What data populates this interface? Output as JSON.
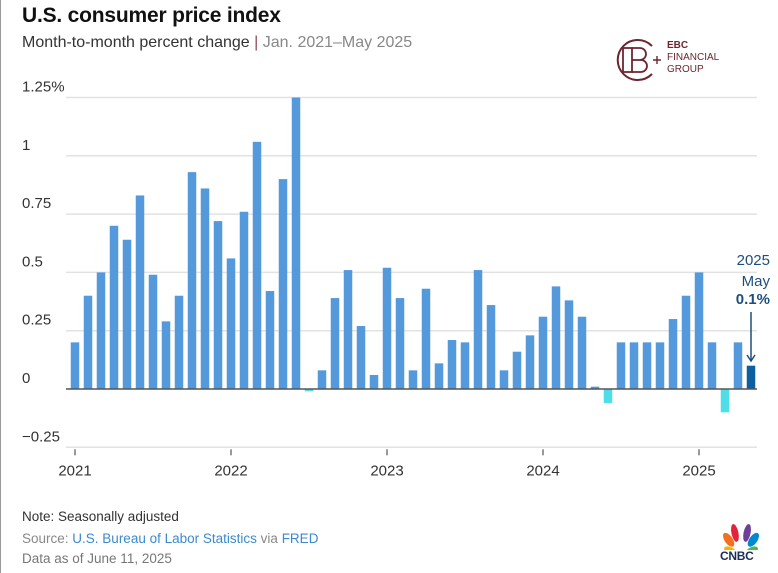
{
  "header": {
    "title": "U.S. consumer price index",
    "subtitle_main": "Month-to-month percent change",
    "subtitle_sep": "|",
    "subtitle_range": "Jan. 2021–May 2025"
  },
  "watermark": {
    "line1": "EBC",
    "line2": "FINANCIAL",
    "line3": "GROUP",
    "color": "#6b2632"
  },
  "annotation": {
    "year": "2025",
    "month": "May",
    "value": "0.1%",
    "color": "#1d4f7e"
  },
  "footer": {
    "note": "Note: Seasonally adjusted",
    "source_prefix": "Source:",
    "source_link": "U.S. Bureau of Labor Statistics",
    "source_via": "via",
    "source_link2": "FRED",
    "as_of": "Data as of June 11, 2025",
    "brand": "CNBC"
  },
  "colors": {
    "positive": "#5599dd",
    "negative": "#4fdde8",
    "highlight": "#0d5fa0",
    "grid": "#e2e2e2",
    "axis": "#555555"
  },
  "chart_data": {
    "type": "bar",
    "title": "U.S. consumer price index",
    "subtitle": "Month-to-month percent change | Jan. 2021–May 2025",
    "xlabel": "",
    "ylabel": "",
    "ylim": [
      -0.25,
      1.25
    ],
    "yticks": [
      -0.25,
      0,
      0.25,
      0.5,
      0.75,
      1,
      1.25
    ],
    "ytick_labels": [
      "−0.25",
      "0",
      "0.25",
      "0.5",
      "0.75",
      "1",
      "1.25%"
    ],
    "xticks": [
      "2021",
      "2022",
      "2023",
      "2024",
      "2025"
    ],
    "grid": true,
    "start": "2021-01",
    "categories": [
      "Jan 2021",
      "Feb 2021",
      "Mar 2021",
      "Apr 2021",
      "May 2021",
      "Jun 2021",
      "Jul 2021",
      "Aug 2021",
      "Sep 2021",
      "Oct 2021",
      "Nov 2021",
      "Dec 2021",
      "Jan 2022",
      "Feb 2022",
      "Mar 2022",
      "Apr 2022",
      "May 2022",
      "Jun 2022",
      "Jul 2022",
      "Aug 2022",
      "Sep 2022",
      "Oct 2022",
      "Nov 2022",
      "Dec 2022",
      "Jan 2023",
      "Feb 2023",
      "Mar 2023",
      "Apr 2023",
      "May 2023",
      "Jun 2023",
      "Jul 2023",
      "Aug 2023",
      "Sep 2023",
      "Oct 2023",
      "Nov 2023",
      "Dec 2023",
      "Jan 2024",
      "Feb 2024",
      "Mar 2024",
      "Apr 2024",
      "May 2024",
      "Jun 2024",
      "Jul 2024",
      "Aug 2024",
      "Sep 2024",
      "Oct 2024",
      "Nov 2024",
      "Dec 2024",
      "Jan 2025",
      "Feb 2025",
      "Mar 2025",
      "Apr 2025",
      "May 2025"
    ],
    "values": [
      0.2,
      0.4,
      0.5,
      0.7,
      0.64,
      0.83,
      0.49,
      0.29,
      0.4,
      0.93,
      0.86,
      0.72,
      0.56,
      0.76,
      1.06,
      0.42,
      0.9,
      1.25,
      -0.01,
      0.08,
      0.39,
      0.51,
      0.27,
      0.06,
      0.52,
      0.39,
      0.08,
      0.43,
      0.11,
      0.21,
      0.2,
      0.51,
      0.36,
      0.08,
      0.16,
      0.23,
      0.31,
      0.44,
      0.38,
      0.31,
      0.01,
      -0.06,
      0.2,
      0.2,
      0.2,
      0.2,
      0.3,
      0.4,
      0.5,
      0.2,
      -0.1,
      0.2,
      0.1
    ],
    "highlight_index": 52,
    "legend": "none"
  }
}
